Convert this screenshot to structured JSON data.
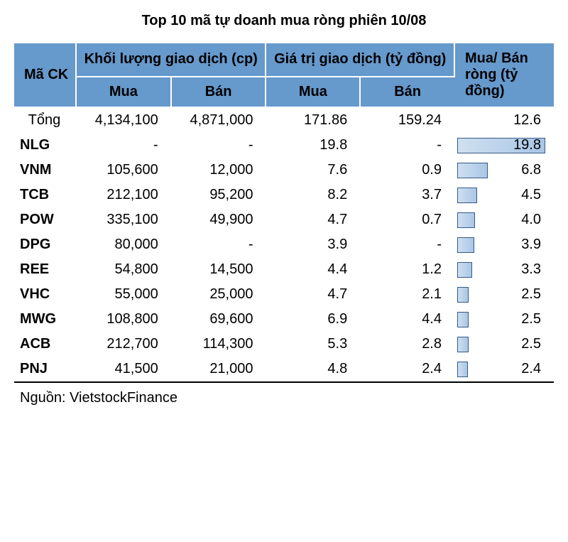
{
  "title": "Top 10 mã tự doanh mua ròng phiên 10/08",
  "colors": {
    "header_bg": "#6699cc",
    "bar_fill_start": "#cfe0f0",
    "bar_fill_end": "#a9c6e6",
    "bar_border": "#335a87",
    "background": "#ffffff",
    "divider": "#ffffff",
    "text": "#000000"
  },
  "table": {
    "type": "table",
    "header": {
      "col1": "Mã CK",
      "col2": "Khối lượng giao dịch (cp)",
      "col3": "Giá trị giao dịch (tỷ đồng)",
      "col4": "Mua/ Bán ròng (tỷ đồng)",
      "sub_mua": "Mua",
      "sub_ban": "Bán"
    },
    "max_bar": 19.8,
    "total": {
      "label": "Tổng",
      "vol_buy": "4,134,100",
      "vol_sell": "4,871,000",
      "val_buy": "171.86",
      "val_sell": "159.24",
      "net": "12.6"
    },
    "rows": [
      {
        "code": "NLG",
        "vol_buy": "-",
        "vol_sell": "-",
        "val_buy": "19.8",
        "val_sell": "-",
        "net": "19.8",
        "net_num": 19.8
      },
      {
        "code": "VNM",
        "vol_buy": "105,600",
        "vol_sell": "12,000",
        "val_buy": "7.6",
        "val_sell": "0.9",
        "net": "6.8",
        "net_num": 6.8
      },
      {
        "code": "TCB",
        "vol_buy": "212,100",
        "vol_sell": "95,200",
        "val_buy": "8.2",
        "val_sell": "3.7",
        "net": "4.5",
        "net_num": 4.5
      },
      {
        "code": "POW",
        "vol_buy": "335,100",
        "vol_sell": "49,900",
        "val_buy": "4.7",
        "val_sell": "0.7",
        "net": "4.0",
        "net_num": 4.0
      },
      {
        "code": "DPG",
        "vol_buy": "80,000",
        "vol_sell": "-",
        "val_buy": "3.9",
        "val_sell": "-",
        "net": "3.9",
        "net_num": 3.9
      },
      {
        "code": "REE",
        "vol_buy": "54,800",
        "vol_sell": "14,500",
        "val_buy": "4.4",
        "val_sell": "1.2",
        "net": "3.3",
        "net_num": 3.3
      },
      {
        "code": "VHC",
        "vol_buy": "55,000",
        "vol_sell": "25,000",
        "val_buy": "4.7",
        "val_sell": "2.1",
        "net": "2.5",
        "net_num": 2.5
      },
      {
        "code": "MWG",
        "vol_buy": "108,800",
        "vol_sell": "69,600",
        "val_buy": "6.9",
        "val_sell": "4.4",
        "net": "2.5",
        "net_num": 2.5
      },
      {
        "code": "ACB",
        "vol_buy": "212,700",
        "vol_sell": "114,300",
        "val_buy": "5.3",
        "val_sell": "2.8",
        "net": "2.5",
        "net_num": 2.5
      },
      {
        "code": "PNJ",
        "vol_buy": "41,500",
        "vol_sell": "21,000",
        "val_buy": "4.8",
        "val_sell": "2.4",
        "net": "2.4",
        "net_num": 2.4
      }
    ],
    "source": "Nguồn: VietstockFinance"
  }
}
